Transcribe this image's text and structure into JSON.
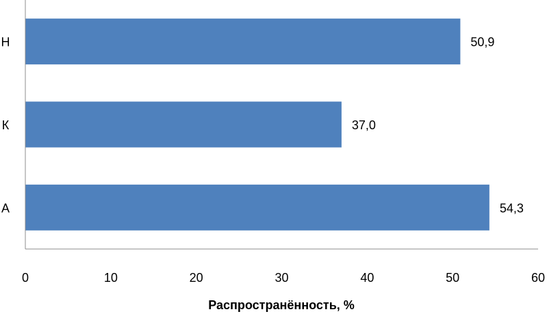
{
  "chart_data": {
    "type": "bar",
    "orientation": "horizontal",
    "categories": [
      "Н",
      "К",
      "А"
    ],
    "values": [
      50.9,
      37.0,
      54.3
    ],
    "data_labels": [
      "50,9",
      "37,0",
      "54,3"
    ],
    "xlabel": "Распространённость,  %",
    "ylabel": "",
    "xlim": [
      0,
      60
    ],
    "xticks": [
      0,
      10,
      20,
      30,
      40,
      50,
      60
    ],
    "grid": false,
    "legend": "none",
    "bar_color": "#4f81bd"
  }
}
